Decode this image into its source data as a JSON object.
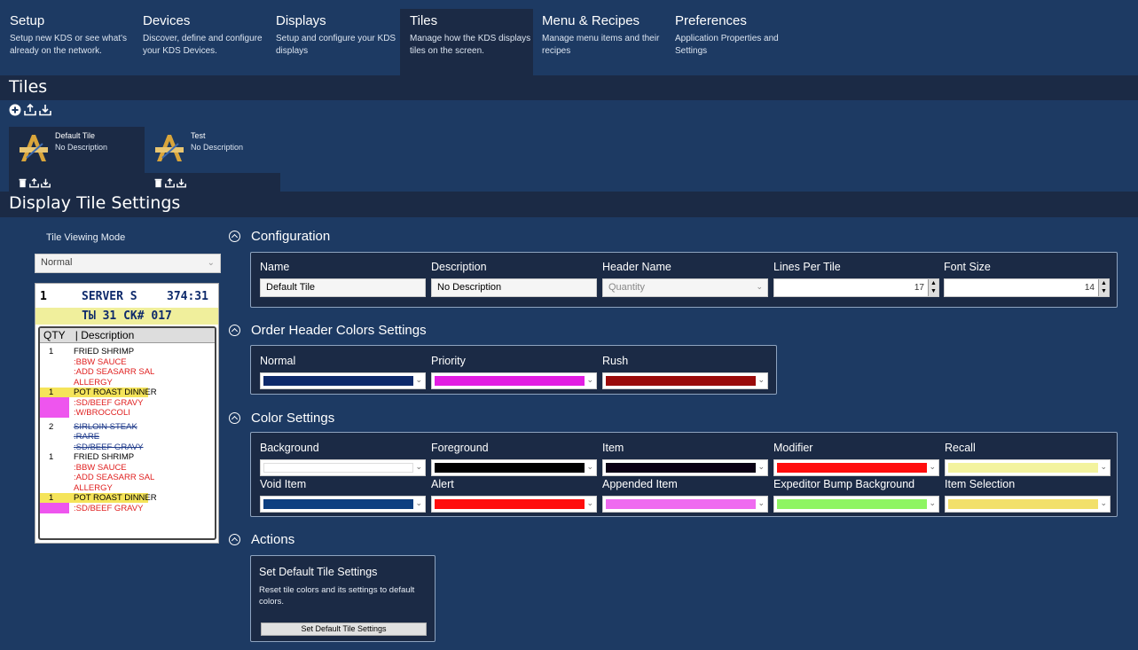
{
  "nav": {
    "tabs": [
      {
        "title": "Setup",
        "desc": "Setup new KDS or see what's already on the network."
      },
      {
        "title": "Devices",
        "desc": "Discover, define and configure your KDS Devices."
      },
      {
        "title": "Displays",
        "desc": "Setup and configure your KDS displays"
      },
      {
        "title": "Tiles",
        "desc": "Manage how the KDS displays tiles on the screen."
      },
      {
        "title": "Menu & Recipes",
        "desc": "Manage menu items and their recipes"
      },
      {
        "title": "Preferences",
        "desc": "Application Properties and Settings"
      }
    ],
    "active_tab": "Tiles"
  },
  "tiles_section": {
    "title": "Tiles",
    "tiles": [
      {
        "name": "Default Tile",
        "desc": "No Description",
        "selected": true
      },
      {
        "name": "Test",
        "desc": "No Description",
        "selected": false
      }
    ]
  },
  "settings_section": {
    "title": "Display Tile Settings"
  },
  "viewing_mode": {
    "label": "Tile Viewing Mode",
    "value": "Normal"
  },
  "preview": {
    "header_left": "1",
    "header_mid": "SERVER S",
    "header_right": "374:31",
    "sub": "ТЫ 31 СК# 017",
    "col_qty": "QTY",
    "col_desc": "| Description",
    "rows": [
      {
        "q": "1",
        "items": [
          "FRIED SHRIMP"
        ],
        "mods": [
          ":BBW SAUCE",
          ":ADD SEASARR SAL",
          "ALLERGY"
        ]
      },
      {
        "q": "1",
        "items": [
          "POT ROAST DINNER"
        ],
        "mods": [
          ":SD/BEEF GRAVY",
          ":W/BROCCOLI"
        ]
      },
      {
        "q": "2",
        "items": [
          "SIRLOIN STEAK"
        ],
        "mods": [
          ":RARE",
          ":SD/BEEF GRAVY"
        ]
      },
      {
        "q": "1",
        "items": [
          "FRIED SHRIMP"
        ],
        "mods": [
          ":BBW SAUCE",
          ":ADD SEASARR SAL",
          "ALLERGY"
        ]
      },
      {
        "q": "1",
        "items": [
          "POT ROAST DINNER"
        ],
        "mods": [
          ":SD/BEEF GRAVY"
        ]
      }
    ]
  },
  "configuration": {
    "title": "Configuration",
    "name_label": "Name",
    "name_value": "Default Tile",
    "desc_label": "Description",
    "desc_value": "No Description",
    "header_label": "Header Name",
    "header_value": "Quantity",
    "lines_label": "Lines Per Tile",
    "lines_value": "17",
    "font_label": "Font Size",
    "font_value": "14"
  },
  "order_header_colors": {
    "title": "Order Header Colors Settings",
    "items": [
      {
        "label": "Normal",
        "color": "#0e2a6b"
      },
      {
        "label": "Priority",
        "color": "#e21ee2"
      },
      {
        "label": "Rush",
        "color": "#9a0b0b"
      }
    ]
  },
  "color_settings": {
    "title": "Color Settings",
    "items": [
      {
        "label": "Background",
        "color": "#ffffff"
      },
      {
        "label": "Foreground",
        "color": "#000000"
      },
      {
        "label": "Item",
        "color": "#0b0014"
      },
      {
        "label": "Modifier",
        "color": "#ff0d0d"
      },
      {
        "label": "Recall",
        "color": "#f3f39e"
      },
      {
        "label": "Void Item",
        "color": "#0d3f80"
      },
      {
        "label": "Alert",
        "color": "#ff0d0d"
      },
      {
        "label": "Appended Item",
        "color": "#ef6af0"
      },
      {
        "label": "Expeditor Bump Background",
        "color": "#8ef562"
      },
      {
        "label": "Item Selection",
        "color": "#f2e06a"
      }
    ]
  },
  "actions": {
    "title": "Actions",
    "card_title": "Set Default Tile Settings",
    "card_desc": "Reset tile colors and its settings to default colors.",
    "button_label": "Set Default Tile Settings"
  }
}
